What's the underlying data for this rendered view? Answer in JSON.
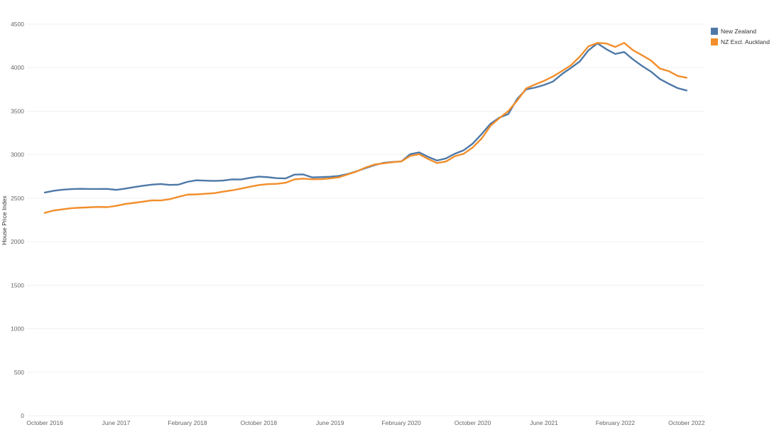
{
  "chart_data": {
    "type": "line",
    "title": "",
    "xlabel": "",
    "ylabel": "House Price Index",
    "ylim": [
      0,
      4500
    ],
    "yticks": [
      0,
      500,
      1000,
      1500,
      2000,
      2500,
      3000,
      3500,
      4000,
      4500
    ],
    "x_tick_labels": [
      "October 2016",
      "June 2017",
      "February 2018",
      "October 2018",
      "June 2019",
      "February 2020",
      "October 2020",
      "June 2021",
      "February 2022",
      "October 2022"
    ],
    "x_tick_months": [
      0,
      8,
      16,
      24,
      32,
      40,
      48,
      56,
      64,
      72
    ],
    "x_range_months": [
      -2,
      74
    ],
    "grid": true,
    "legend_position": "top-right",
    "series": [
      {
        "name": "New Zealand",
        "color": "#4e79a7",
        "values": [
          2565,
          2585,
          2598,
          2605,
          2608,
          2606,
          2606,
          2607,
          2596,
          2610,
          2627,
          2643,
          2656,
          2663,
          2653,
          2656,
          2688,
          2706,
          2702,
          2699,
          2703,
          2716,
          2715,
          2733,
          2748,
          2742,
          2730,
          2727,
          2771,
          2773,
          2739,
          2742,
          2747,
          2756,
          2778,
          2810,
          2846,
          2880,
          2906,
          2916,
          2922,
          3006,
          3026,
          2975,
          2933,
          2957,
          3011,
          3051,
          3127,
          3236,
          3355,
          3426,
          3467,
          3642,
          3750,
          3771,
          3801,
          3840,
          3925,
          3996,
          4070,
          4200,
          4280,
          4212,
          4158,
          4180,
          4094,
          4020,
          3955,
          3870,
          3815,
          3765,
          3738
        ]
      },
      {
        "name": "NZ Excl. Auckland",
        "color": "#f28e2b",
        "values": [
          2331,
          2359,
          2372,
          2385,
          2391,
          2395,
          2400,
          2397,
          2412,
          2433,
          2446,
          2460,
          2475,
          2474,
          2488,
          2516,
          2541,
          2544,
          2551,
          2558,
          2575,
          2590,
          2610,
          2631,
          2651,
          2662,
          2665,
          2677,
          2716,
          2725,
          2717,
          2719,
          2727,
          2740,
          2774,
          2808,
          2853,
          2887,
          2901,
          2913,
          2923,
          2986,
          3005,
          2951,
          2904,
          2921,
          2982,
          3011,
          3082,
          3185,
          3332,
          3420,
          3501,
          3622,
          3761,
          3807,
          3848,
          3898,
          3960,
          4025,
          4124,
          4246,
          4285,
          4278,
          4238,
          4285,
          4200,
          4143,
          4083,
          3990,
          3960,
          3905,
          3884
        ]
      }
    ]
  }
}
